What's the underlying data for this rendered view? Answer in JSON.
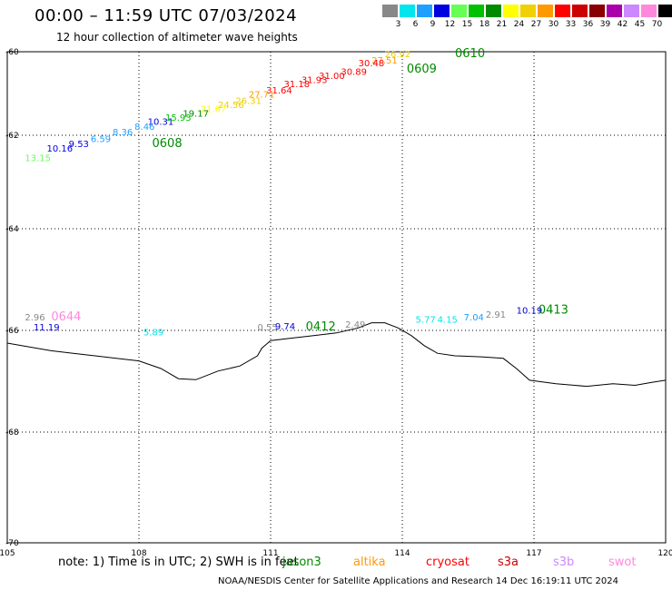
{
  "header": {
    "title": "00:00 – 11:59 UTC 07/03/2024",
    "subtitle": "12 hour collection of altimeter wave heights"
  },
  "color_scale": {
    "unit": "(ft)",
    "bins": [
      {
        "label": "3",
        "color": "#888888"
      },
      {
        "label": "6",
        "color": "#00e5ee"
      },
      {
        "label": "9",
        "color": "#1ea0ff"
      },
      {
        "label": "12",
        "color": "#0000e0"
      },
      {
        "label": "15",
        "color": "#66ff55"
      },
      {
        "label": "18",
        "color": "#00c000"
      },
      {
        "label": "21",
        "color": "#008a00"
      },
      {
        "label": "24",
        "color": "#ffff00"
      },
      {
        "label": "27",
        "color": "#f0d000"
      },
      {
        "label": "30",
        "color": "#ff9900"
      },
      {
        "label": "33",
        "color": "#ff0000"
      },
      {
        "label": "36",
        "color": "#cc0000"
      },
      {
        "label": "39",
        "color": "#880000"
      },
      {
        "label": "42",
        "color": "#aa00aa"
      },
      {
        "label": "45",
        "color": "#cc88ff"
      },
      {
        "label": "70",
        "color": "#ff88dd"
      },
      {
        "label": "",
        "color": "#000000"
      }
    ]
  },
  "map": {
    "lat_ticks": [
      "-60",
      "-62",
      "-64",
      "-66",
      "-68",
      "-70"
    ],
    "lon_ticks": [
      "105",
      "108",
      "111",
      "114",
      "117",
      "120"
    ],
    "lon_range": [
      105,
      120
    ],
    "lat_range": [
      -70,
      -60
    ],
    "coastline": [
      [
        105,
        -66.25
      ],
      [
        106,
        -66.4
      ],
      [
        106.5,
        -66.45
      ],
      [
        107,
        -66.5
      ],
      [
        108,
        -66.6
      ],
      [
        108.5,
        -66.75
      ],
      [
        108.9,
        -66.95
      ],
      [
        109.3,
        -66.97
      ],
      [
        109.8,
        -66.8
      ],
      [
        110.3,
        -66.7
      ],
      [
        110.7,
        -66.5
      ],
      [
        110.8,
        -66.35
      ],
      [
        111,
        -66.2
      ],
      [
        111.5,
        -66.15
      ],
      [
        112,
        -66.1
      ],
      [
        112.5,
        -66.05
      ],
      [
        113,
        -65.95
      ],
      [
        113.3,
        -65.85
      ],
      [
        113.6,
        -65.85
      ],
      [
        113.9,
        -65.95
      ],
      [
        114.2,
        -66.1
      ],
      [
        114.5,
        -66.3
      ],
      [
        114.8,
        -66.45
      ],
      [
        115.2,
        -66.5
      ],
      [
        115.8,
        -66.52
      ],
      [
        116.3,
        -66.55
      ],
      [
        116.6,
        -66.75
      ],
      [
        116.9,
        -66.98
      ],
      [
        117.5,
        -67.05
      ],
      [
        118.2,
        -67.1
      ],
      [
        118.8,
        -67.05
      ],
      [
        119.3,
        -67.08
      ],
      [
        119.7,
        -67.02
      ],
      [
        120,
        -66.98
      ]
    ],
    "tracks": [
      {
        "name": "0610",
        "label_lon": 115.2,
        "label_lat": -60.13,
        "points": [
          [
            113.6,
            -60.13,
            "26.92"
          ],
          [
            113.3,
            -60.28,
            "27.51"
          ],
          [
            113.0,
            -60.35,
            "30.48"
          ],
          [
            112.6,
            -60.55,
            "30.89"
          ],
          [
            112.1,
            -60.65,
            "31.00"
          ],
          [
            111.7,
            -60.75,
            "31.93"
          ],
          [
            111.3,
            -60.85,
            "31.18"
          ],
          [
            110.9,
            -61.0,
            "31.64"
          ],
          [
            110.5,
            -61.1,
            "27.71"
          ],
          [
            110.2,
            -61.25,
            "26.31"
          ],
          [
            109.8,
            -61.35,
            "24.56"
          ],
          [
            109.4,
            -61.45,
            "21.67"
          ],
          [
            109.0,
            -61.55,
            "19.17"
          ],
          [
            108.6,
            -61.65,
            "15.93"
          ],
          [
            108.2,
            -61.75,
            "10.31"
          ],
          [
            107.9,
            -61.87,
            "8.46"
          ],
          [
            107.4,
            -62.0,
            "8.36"
          ],
          [
            106.9,
            -62.15,
            "6.59"
          ],
          [
            106.4,
            -62.25,
            "9.53"
          ],
          [
            105.9,
            -62.35,
            "10.16"
          ],
          [
            105.4,
            -62.55,
            "13.15"
          ]
        ]
      },
      {
        "name": "0609",
        "label_lon": 114.1,
        "label_lat": -60.5,
        "points": []
      },
      {
        "name": "0608",
        "label_lon": 108.3,
        "label_lat": -62.25,
        "points": []
      },
      {
        "name": "0644",
        "label_lon": 106.0,
        "label_lat": -65.8,
        "points": [
          [
            105.4,
            -65.8,
            "2.96"
          ],
          [
            105.6,
            -66.0,
            "11.19"
          ],
          [
            108.1,
            -66.1,
            "5.89"
          ]
        ]
      },
      {
        "name": "0412",
        "label_lon": 111.8,
        "label_lat": -66.0,
        "points": [
          [
            110.7,
            -66.0,
            "0.55"
          ],
          [
            111.1,
            -65.98,
            "9.74"
          ],
          [
            112.7,
            -65.95,
            "2.49"
          ],
          [
            114.3,
            -65.85,
            "5.77"
          ],
          [
            114.8,
            -65.85,
            "4.15"
          ],
          [
            115.4,
            -65.8,
            "7.04"
          ],
          [
            115.9,
            -65.75,
            "2.91"
          ]
        ]
      },
      {
        "name": "0413",
        "label_lon": 117.1,
        "label_lat": -65.67,
        "points": [
          [
            116.6,
            -65.67,
            "10.19"
          ]
        ]
      }
    ]
  },
  "note": {
    "text": "note:  1) Time is in UTC;  2) SWH is in feet"
  },
  "satellites": [
    {
      "label": "jason3",
      "color": "#008a00"
    },
    {
      "label": "altika",
      "color": "#ff9900"
    },
    {
      "label": "cryosat",
      "color": "#ff0000"
    },
    {
      "label": "s3a",
      "color": "#cc0000"
    },
    {
      "label": "s3b",
      "color": "#cc88ff"
    },
    {
      "label": "swot",
      "color": "#ff88dd"
    }
  ],
  "credit": "NOAA/NESDIS Center for Satellite Applications and Research    14 Dec 16:19:11 UTC 2024"
}
